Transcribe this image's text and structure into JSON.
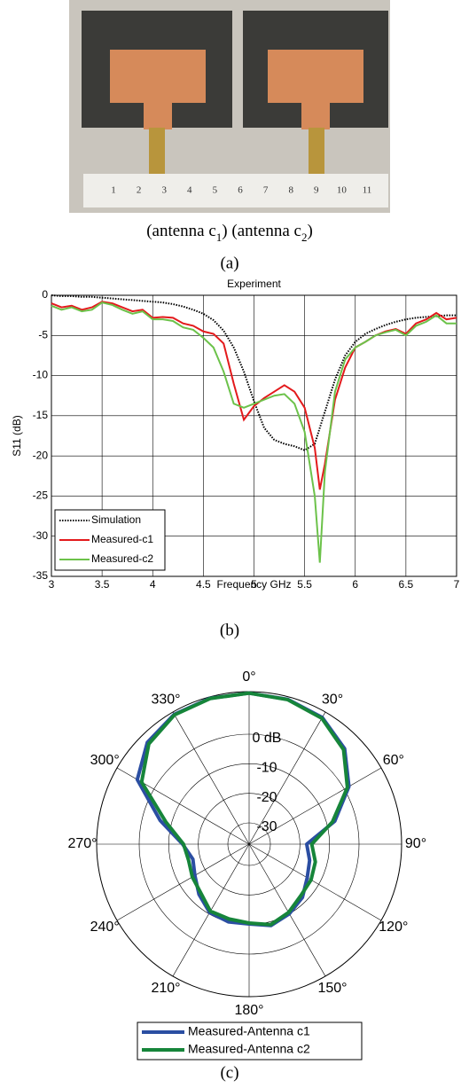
{
  "photo": {
    "ruler_labels": [
      "1",
      "2",
      "3",
      "4",
      "5",
      "6",
      "7",
      "8",
      "9",
      "10",
      "11"
    ],
    "caption": [
      {
        "text": "(antenna c",
        "sub": "1",
        "tail": ")"
      },
      {
        "text": "(antenna c",
        "sub": "2",
        "tail": ")"
      }
    ],
    "label": "(a)"
  },
  "chart_data": [
    {
      "type": "line",
      "title": "Experiment",
      "x_label": "Frequency GHz",
      "y_label": "S11 (dB)",
      "label": "(b)",
      "x": [
        3.0,
        3.1,
        3.2,
        3.3,
        3.4,
        3.5,
        3.6,
        3.7,
        3.8,
        3.9,
        4.0,
        4.1,
        4.2,
        4.3,
        4.4,
        4.5,
        4.6,
        4.7,
        4.8,
        4.9,
        5.0,
        5.1,
        5.2,
        5.3,
        5.4,
        5.5,
        5.6,
        5.65,
        5.7,
        5.8,
        5.9,
        6.0,
        6.1,
        6.2,
        6.3,
        6.4,
        6.5,
        6.6,
        6.7,
        6.8,
        6.9,
        7.0
      ],
      "series": [
        {
          "name": "Simulation",
          "color": "#000000",
          "dash": true,
          "values": [
            0,
            -0.1,
            -0.1,
            -0.2,
            -0.2,
            -0.3,
            -0.4,
            -0.5,
            -0.6,
            -0.7,
            -0.8,
            -0.9,
            -1.1,
            -1.4,
            -1.8,
            -2.3,
            -3.1,
            -4.4,
            -6.5,
            -9.5,
            -13.2,
            -16.5,
            -18,
            -18.5,
            -18.8,
            -19.3,
            -18.5,
            -16.5,
            -14.5,
            -10.5,
            -7.5,
            -5.8,
            -4.8,
            -4.2,
            -3.7,
            -3.3,
            -3.0,
            -2.8,
            -2.7,
            -2.6,
            -2.5,
            -2.5
          ]
        },
        {
          "name": "Measured-c1",
          "color": "#e31a1c",
          "dash": false,
          "values": [
            -1,
            -1.5,
            -1.3,
            -1.8,
            -1.5,
            -0.8,
            -1,
            -1.5,
            -2,
            -1.8,
            -2.8,
            -2.7,
            -2.8,
            -3.5,
            -3.8,
            -4.5,
            -4.8,
            -6,
            -11,
            -15.5,
            -13.8,
            -12.8,
            -12,
            -11.2,
            -12,
            -14,
            -19,
            -24.2,
            -21,
            -13,
            -9,
            -6.5,
            -5.8,
            -5,
            -4.5,
            -4.2,
            -4.8,
            -3.5,
            -3,
            -2.2,
            -3,
            -2.8
          ]
        },
        {
          "name": "Measured-c2",
          "color": "#6cc24a",
          "dash": false,
          "values": [
            -1.3,
            -1.8,
            -1.5,
            -2,
            -1.8,
            -0.9,
            -1.2,
            -1.8,
            -2.3,
            -2,
            -3,
            -3,
            -3.2,
            -4,
            -4.3,
            -5.3,
            -6.5,
            -9.5,
            -13.5,
            -14,
            -13.5,
            -13,
            -12.5,
            -12.3,
            -13.5,
            -17,
            -25,
            -33.3,
            -22,
            -12,
            -8,
            -6.5,
            -5.8,
            -5,
            -4.6,
            -4.3,
            -5,
            -3.8,
            -3.3,
            -2.5,
            -3.5,
            -3.5
          ]
        }
      ],
      "xlim": [
        3,
        7
      ],
      "ylim": [
        -35,
        0
      ],
      "xticks": [
        3,
        3.5,
        4,
        4.5,
        5,
        5.5,
        6,
        6.5,
        7
      ],
      "yticks": [
        0,
        -5,
        -10,
        -15,
        -20,
        -25,
        -30,
        -35
      ],
      "grid": true,
      "legend": "lower left"
    },
    {
      "type": "polar",
      "label": "(c)",
      "theta": [
        0,
        15,
        30,
        45,
        60,
        75,
        90,
        105,
        120,
        135,
        150,
        165,
        180,
        195,
        210,
        225,
        240,
        255,
        270,
        285,
        300,
        315,
        330,
        345
      ],
      "series": [
        {
          "name": "Measured-Antenna c1",
          "color": "#2b4ea2",
          "values": [
            13.9,
            13.5,
            12.3,
            8.5,
            1.8,
            -7.2,
            -17.7,
            -16,
            -14.5,
            -11.7,
            -10,
            -8.7,
            -10.2,
            -10,
            -10.5,
            -13.2,
            -16,
            -17.5,
            -14.7,
            -6,
            6.5,
            11.5,
            13.5,
            13.9
          ]
        },
        {
          "name": "Measured-Antenna c2",
          "color": "#16853a",
          "values": [
            13.9,
            13.4,
            12,
            8,
            1.2,
            -8,
            -16,
            -14,
            -13,
            -12.5,
            -10.5,
            -9,
            -10.5,
            -11,
            -11,
            -14,
            -15,
            -16,
            -15,
            -8,
            4.8,
            10.8,
            13.3,
            13.8
          ]
        }
      ],
      "rlim": [
        -37.2,
        14.4
      ],
      "rticks": [
        {
          "value": 0,
          "label": "0 dB"
        },
        -10,
        -20,
        -30
      ],
      "thetaticks": [
        {
          "value": 0,
          "label": "0°"
        },
        {
          "value": 30,
          "label": "30°"
        },
        {
          "value": 60,
          "label": "60°"
        },
        {
          "value": 90,
          "label": "90°"
        },
        {
          "value": 120,
          "label": "120°"
        },
        {
          "value": 150,
          "label": "150°"
        },
        {
          "value": 180,
          "label": "180°"
        },
        {
          "value": 210,
          "label": "210°"
        },
        {
          "value": 240,
          "label": "240°"
        },
        {
          "value": 270,
          "label": "270°"
        },
        {
          "value": 300,
          "label": "300°"
        },
        {
          "value": 330,
          "label": "330°"
        }
      ],
      "legend": "below"
    }
  ]
}
